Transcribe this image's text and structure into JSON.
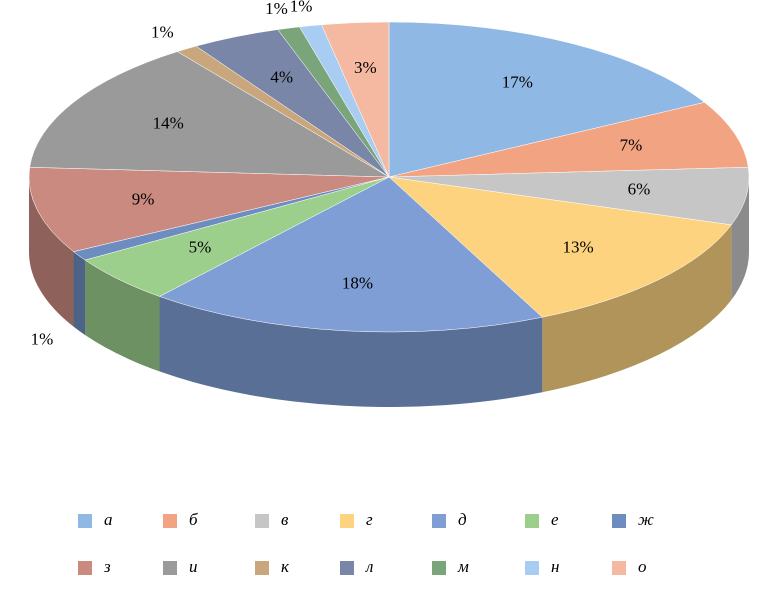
{
  "chart_data": {
    "type": "pie3d",
    "categories": [
      "а",
      "б",
      "в",
      "г",
      "д",
      "е",
      "ж",
      "з",
      "и",
      "к",
      "л",
      "м",
      "н",
      "о"
    ],
    "values": [
      17,
      7,
      6,
      13,
      18,
      5,
      1,
      9,
      14,
      1,
      4,
      1,
      1,
      3
    ],
    "value_labels": [
      "17%",
      "7%",
      "6%",
      "13%",
      "18%",
      "5%",
      "1%",
      "9%",
      "14%",
      "1%",
      "4%",
      "1%",
      "1%",
      "3%"
    ],
    "colors": [
      "#90b8e4",
      "#f2a482",
      "#c6c6c6",
      "#fdd37f",
      "#7f9ed6",
      "#9ccf8c",
      "#6d8dc1",
      "#cb8a80",
      "#9a9a9a",
      "#c9a67b",
      "#7a86a8",
      "#7aa57a",
      "#a9ccf2",
      "#f5b9a1"
    ],
    "legend": "bottom"
  }
}
